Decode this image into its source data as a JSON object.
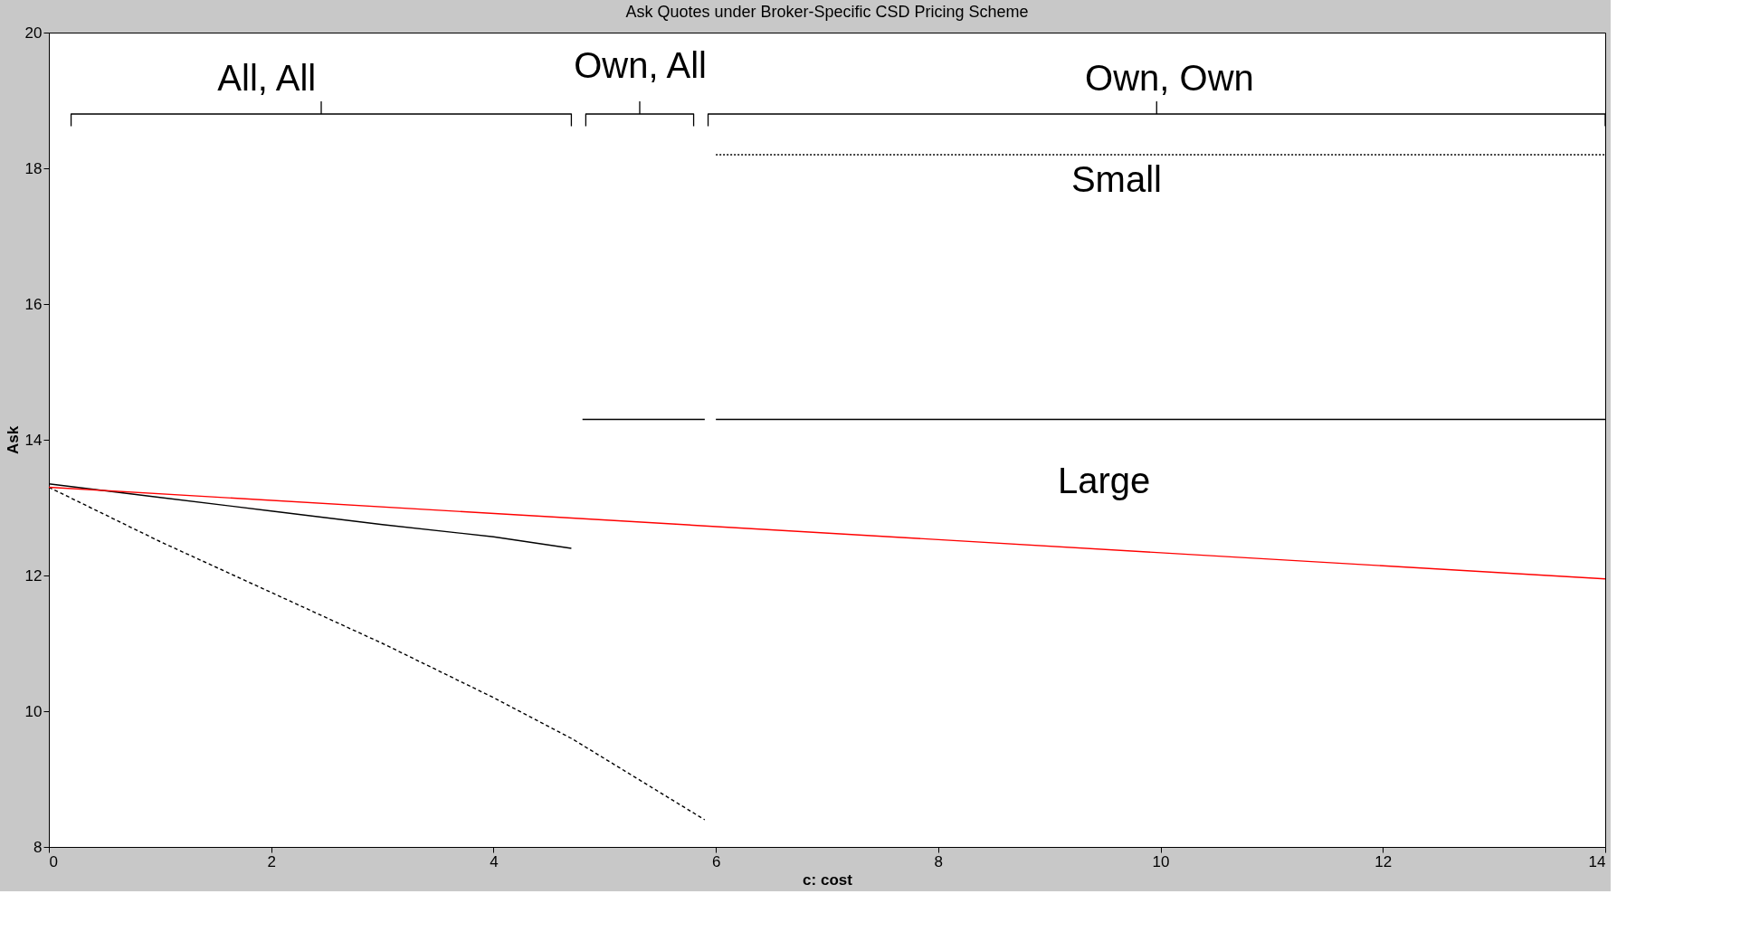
{
  "chart_data": {
    "type": "line",
    "title": "Ask Quotes under Broker-Specific CSD Pricing Scheme",
    "xlabel": "c: cost",
    "ylabel": "Ask",
    "xlim": [
      0,
      14
    ],
    "ylim": [
      8,
      20
    ],
    "xticks": [
      0,
      2,
      4,
      6,
      8,
      10,
      12,
      14
    ],
    "yticks": [
      8,
      10,
      12,
      14,
      16,
      18,
      20
    ],
    "grid": false,
    "marker": "none",
    "series": [
      {
        "color": "#000000",
        "line_style": "solid",
        "x": [
          0,
          1,
          2,
          3,
          4,
          4.7
        ],
        "values": [
          13.35,
          13.15,
          12.95,
          12.75,
          12.57,
          12.4
        ]
      },
      {
        "color": "#000000",
        "line_style": "dashed",
        "x": [
          0,
          1,
          2,
          3,
          4,
          4.7,
          5.9
        ],
        "values": [
          13.3,
          12.5,
          11.75,
          11.0,
          10.2,
          9.6,
          8.4
        ]
      },
      {
        "color": "#ff0000",
        "line_style": "solid",
        "x": [
          0,
          14
        ],
        "values": [
          13.3,
          11.95
        ]
      },
      {
        "color": "#000000",
        "line_style": "solid",
        "x": [
          4.8,
          5.9
        ],
        "values": [
          14.3,
          14.3
        ]
      },
      {
        "color": "#000000",
        "line_style": "solid",
        "x": [
          6,
          14
        ],
        "values": [
          14.3,
          14.3
        ]
      },
      {
        "color": "#000000",
        "line_style": "dotted",
        "x": [
          6,
          14
        ],
        "values": [
          18.2,
          18.2
        ]
      }
    ],
    "annotations": [
      "All, All",
      "Own, All",
      "Own, Own",
      "Small",
      "Large"
    ]
  }
}
